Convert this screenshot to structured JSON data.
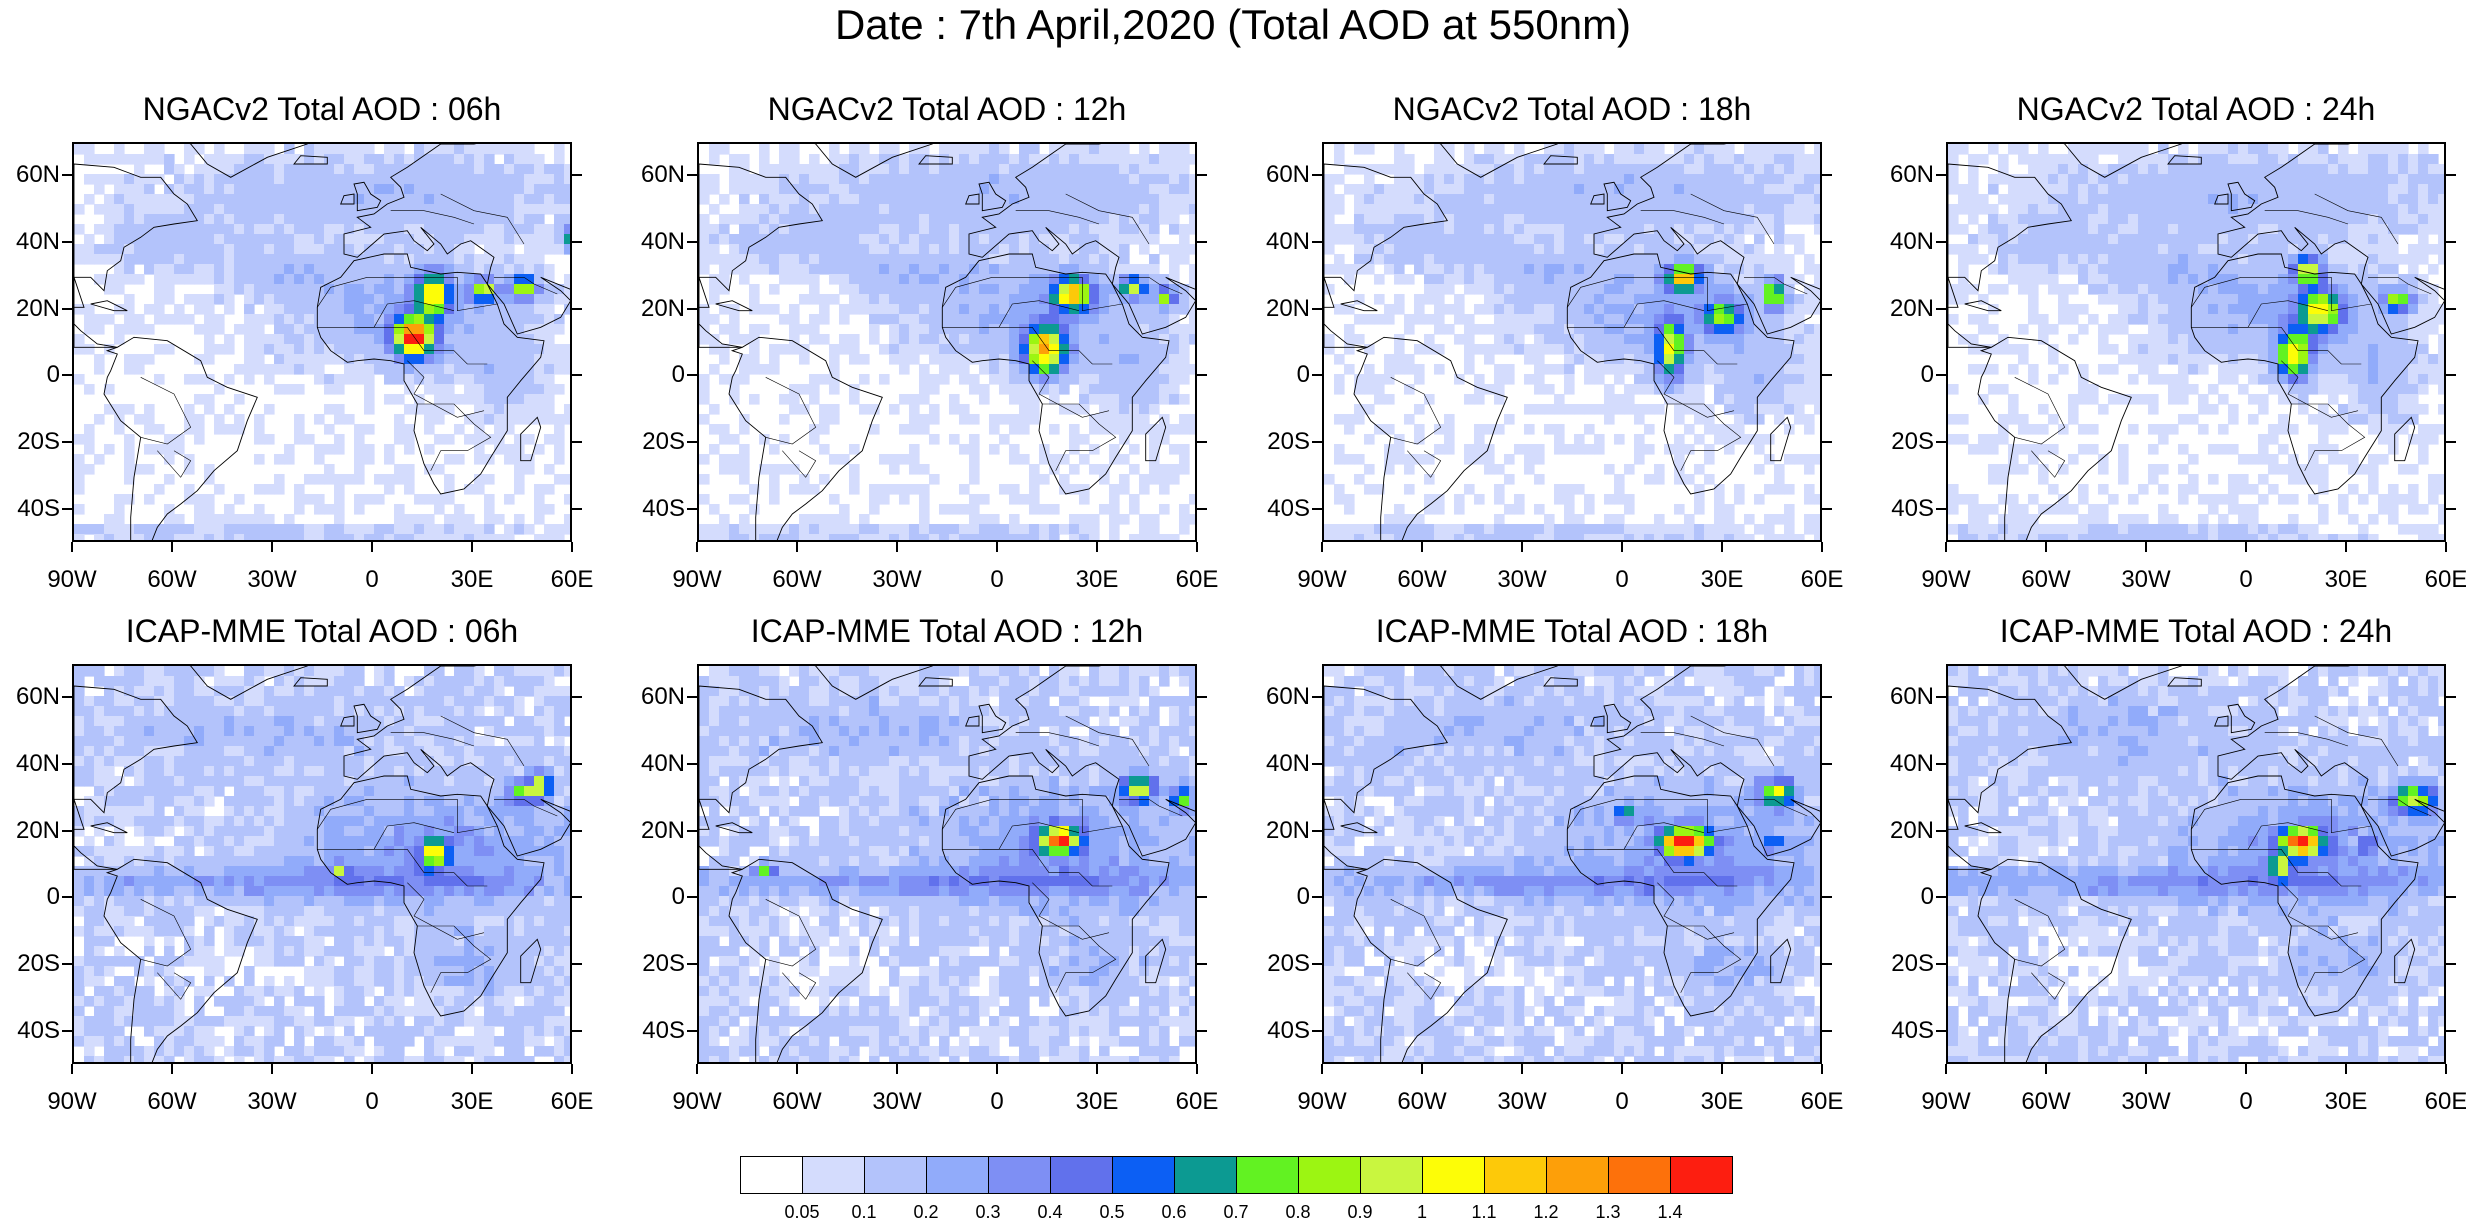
{
  "title": "Date : 7th April,2020 (Total AOD at 550nm)",
  "map_axes": {
    "lat_labels": [
      "60N",
      "40N",
      "20N",
      "0",
      "20S",
      "40S"
    ],
    "lat_values": [
      60,
      40,
      20,
      0,
      -20,
      -40
    ],
    "lon_labels": [
      "90W",
      "60W",
      "30W",
      "0",
      "30E",
      "60E"
    ],
    "lon_values": [
      -90,
      -60,
      -30,
      0,
      30,
      60
    ],
    "lat_range": [
      -50,
      70
    ],
    "lon_range": [
      -90,
      60
    ]
  },
  "panels": [
    {
      "title": "NGACv2 Total AOD : 06h",
      "model": "NGACv2",
      "hour": 6
    },
    {
      "title": "NGACv2 Total AOD : 12h",
      "model": "NGACv2",
      "hour": 12
    },
    {
      "title": "NGACv2 Total AOD : 18h",
      "model": "NGACv2",
      "hour": 18
    },
    {
      "title": "NGACv2 Total AOD : 24h",
      "model": "NGACv2",
      "hour": 24
    },
    {
      "title": "ICAP-MME Total AOD : 06h",
      "model": "ICAP-MME",
      "hour": 6
    },
    {
      "title": "ICAP-MME Total AOD : 12h",
      "model": "ICAP-MME",
      "hour": 12
    },
    {
      "title": "ICAP-MME Total AOD : 18h",
      "model": "ICAP-MME",
      "hour": 18
    },
    {
      "title": "ICAP-MME Total AOD : 24h",
      "model": "ICAP-MME",
      "hour": 24
    }
  ],
  "colorbar": {
    "colors": [
      "#ffffff",
      "#d4dcfd",
      "#b3c3fb",
      "#91abfa",
      "#7e8ff4",
      "#6171ec",
      "#0c5ff4",
      "#0c9a92",
      "#62f222",
      "#9cf512",
      "#c9f63f",
      "#fdfd07",
      "#fdc909",
      "#fd9f09",
      "#fd710b",
      "#fd1e10"
    ],
    "labels": [
      "0.05",
      "0.1",
      "0.2",
      "0.3",
      "0.4",
      "0.5",
      "0.6",
      "0.7",
      "0.8",
      "0.9",
      "1",
      "1.1",
      "1.2",
      "1.3",
      "1.4"
    ]
  }
}
